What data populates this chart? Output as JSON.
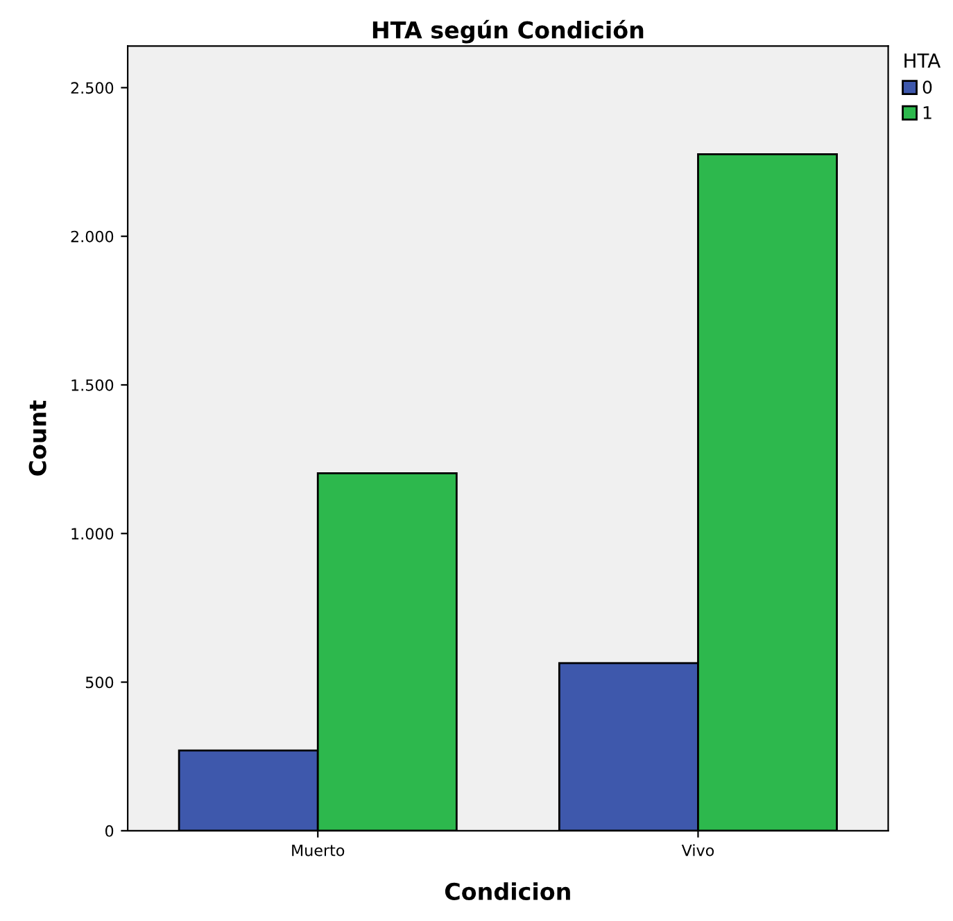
{
  "chart_data": {
    "type": "bar",
    "title": "HTA según Condición",
    "xlabel": "Condicion",
    "ylabel": "Count",
    "legend_title": "HTA",
    "categories": [
      "Muerto",
      "Vivo"
    ],
    "series": [
      {
        "name": "0",
        "color": "#3e58ac",
        "values": [
          270,
          564
        ]
      },
      {
        "name": "1",
        "color": "#2db84d",
        "values": [
          1203,
          2276
        ]
      }
    ],
    "ylim": [
      0,
      2640
    ],
    "yticks": [
      0,
      500,
      {
        "value": 1000,
        "label": "1.000"
      },
      {
        "value": 1500,
        "label": "1.500"
      },
      {
        "value": 2000,
        "label": "2.000"
      },
      {
        "value": 2500,
        "label": "2.500"
      }
    ],
    "grid": false,
    "legend": "top right"
  }
}
